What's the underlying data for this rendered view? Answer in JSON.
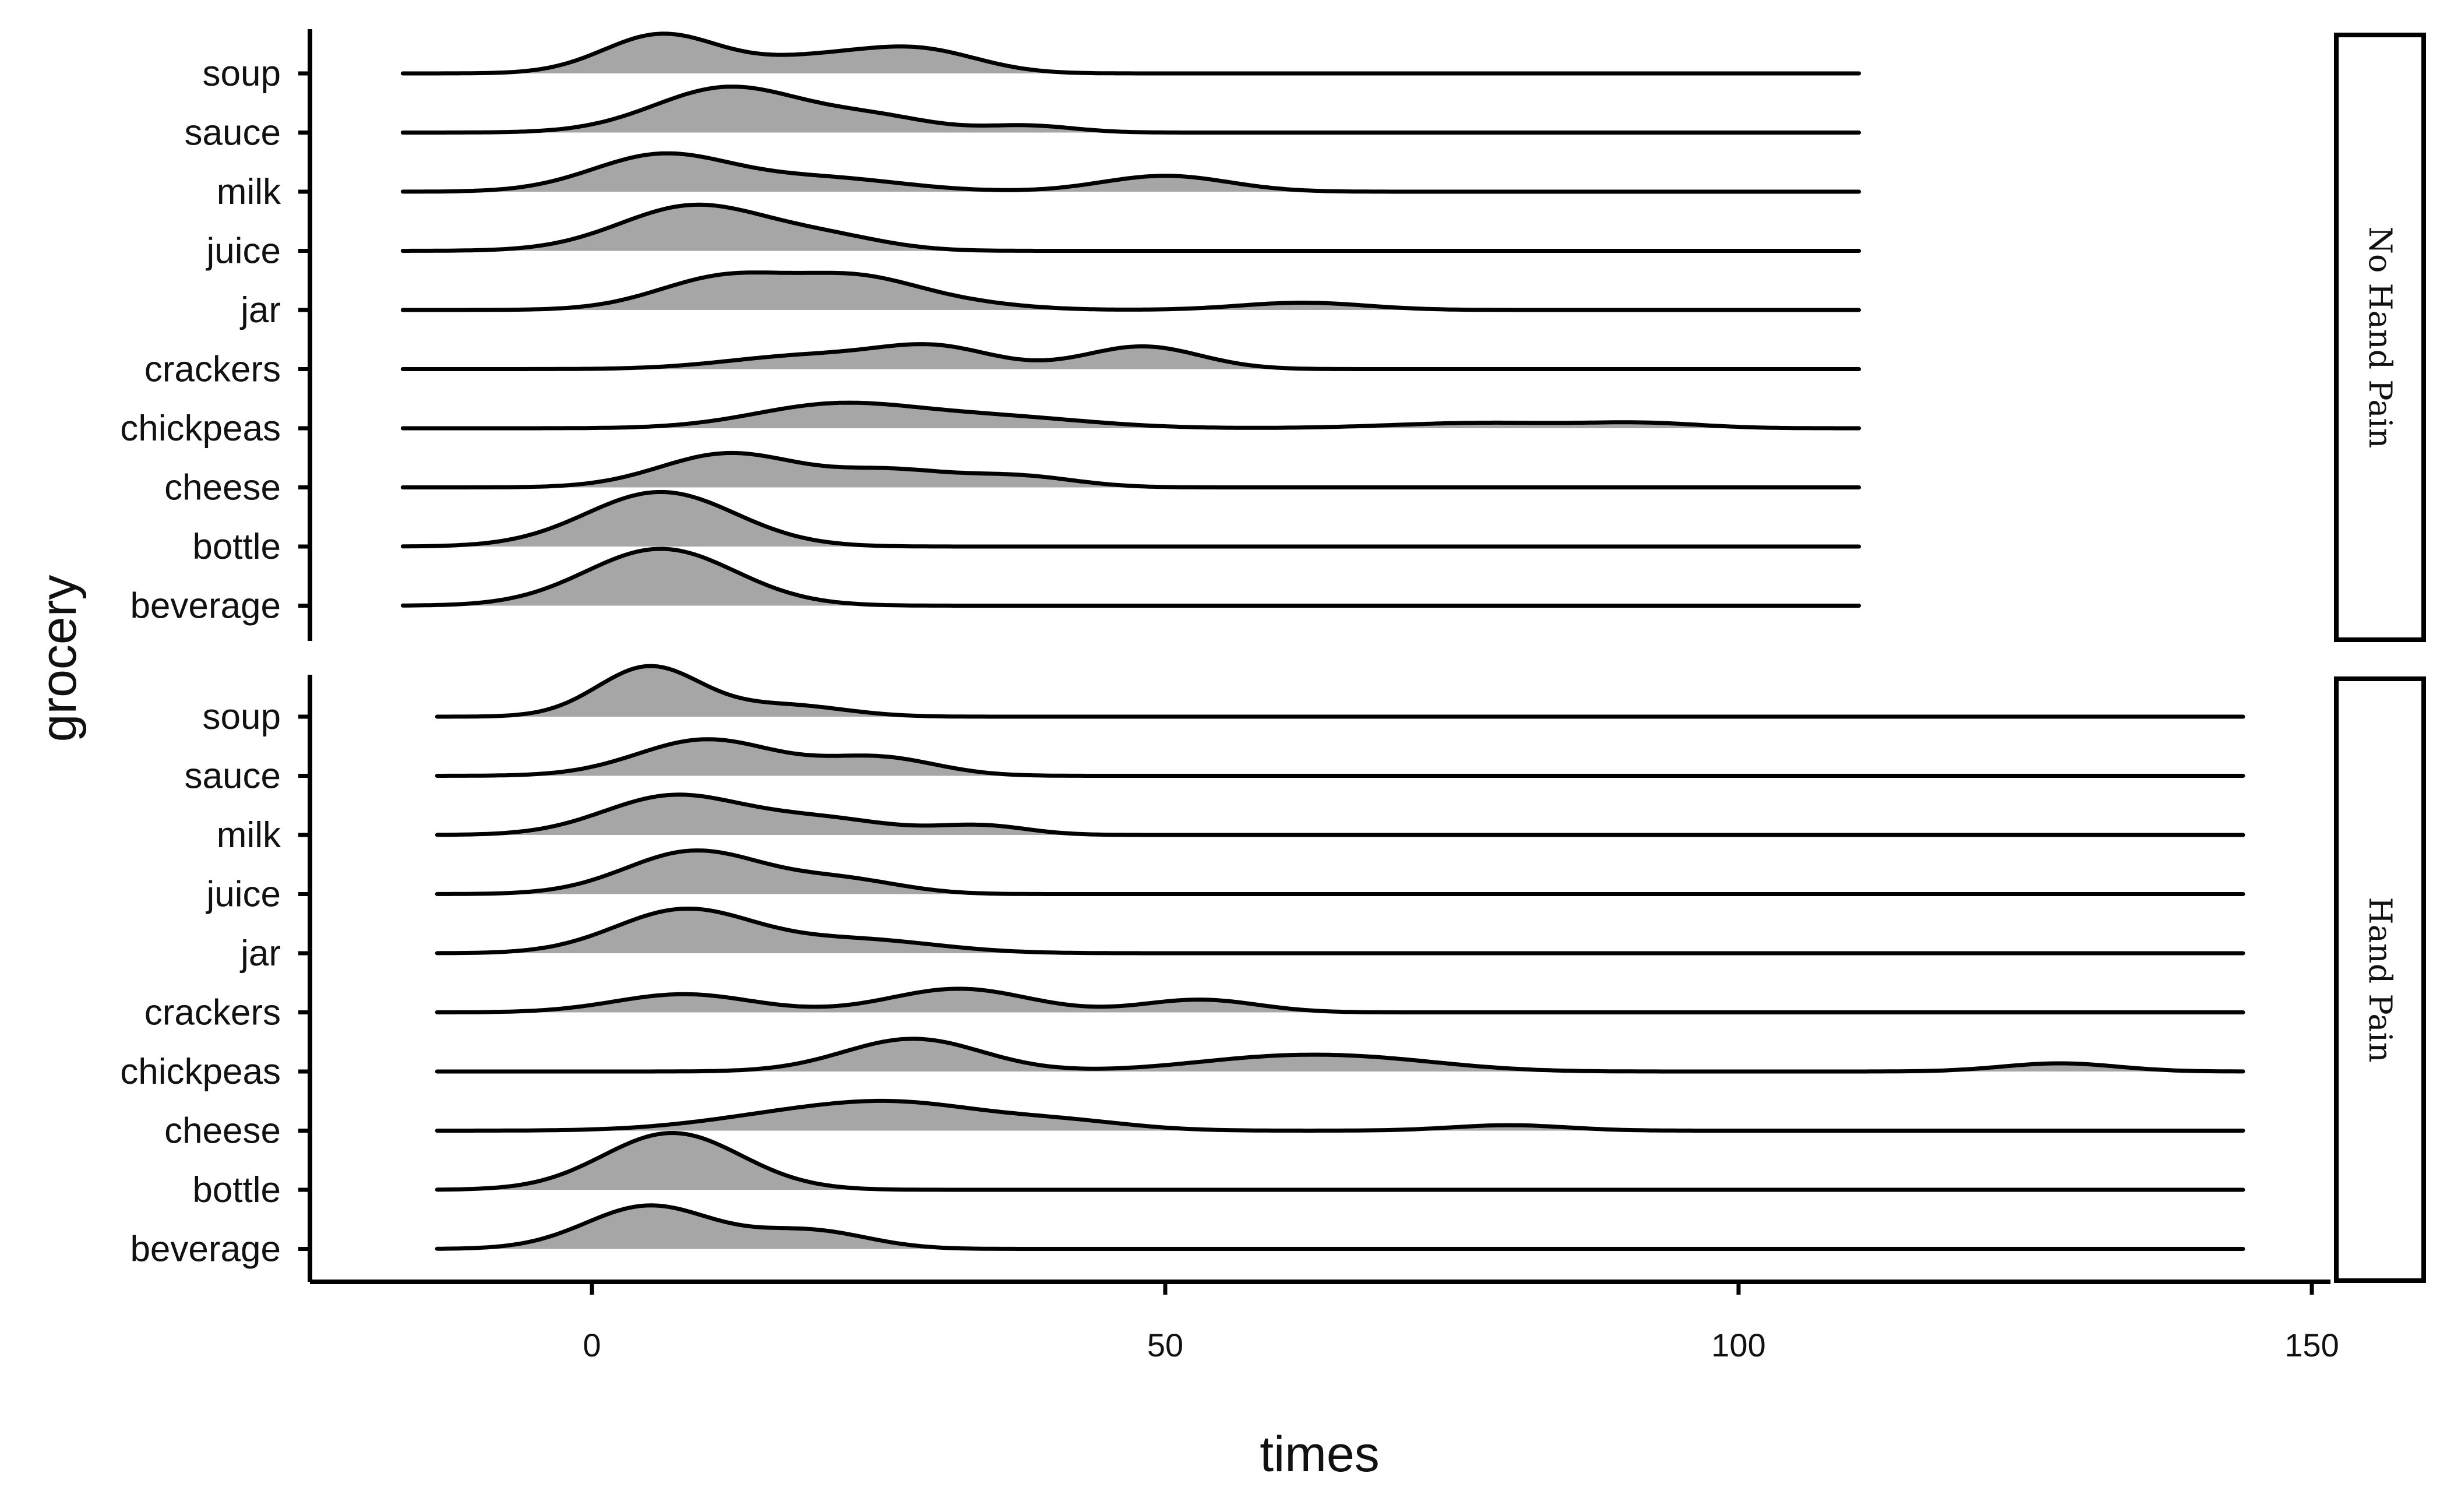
{
  "chart_data": {
    "type": "ridgeline",
    "xlabel": "times",
    "ylabel": "grocery",
    "xlim": [
      -24,
      150
    ],
    "x_ticks": [
      0,
      50,
      100,
      150
    ],
    "fill_color": "#a6a6a6",
    "line_color": "#000000",
    "categories": [
      "soup",
      "sauce",
      "milk",
      "juice",
      "jar",
      "crackers",
      "chickpeas",
      "cheese",
      "bottle",
      "beverage"
    ],
    "panels": [
      {
        "strip_label": "No Hand Pain",
        "x_range": [
          -16.5,
          110.5
        ],
        "series": [
          {
            "name": "soup",
            "peaks": [
              [
                6,
                0.85,
                5
              ],
              [
                20,
                0.35,
                6
              ],
              [
                29,
                0.45,
                5
              ]
            ]
          },
          {
            "name": "sauce",
            "peaks": [
              [
                12,
                1.0,
                6.5
              ],
              [
                25,
                0.3,
                5
              ],
              [
                38,
                0.15,
                4
              ]
            ]
          },
          {
            "name": "milk",
            "peaks": [
              [
                6,
                0.8,
                6
              ],
              [
                20,
                0.3,
                7
              ],
              [
                50,
                0.35,
                5.5
              ]
            ]
          },
          {
            "name": "juice",
            "peaks": [
              [
                9,
                1.0,
                6.5
              ],
              [
                21,
                0.25,
                5
              ]
            ]
          },
          {
            "name": "jar",
            "peaks": [
              [
                12,
                0.75,
                6
              ],
              [
                23,
                0.55,
                5
              ],
              [
                30,
                0.2,
                6
              ],
              [
                62,
                0.16,
                5.5
              ]
            ]
          },
          {
            "name": "crackers",
            "peaks": [
              [
                19,
                0.3,
                7
              ],
              [
                30,
                0.45,
                5
              ],
              [
                48,
                0.5,
                5
              ]
            ]
          },
          {
            "name": "chickpeas",
            "peaks": [
              [
                21,
                0.5,
                7
              ],
              [
                35,
                0.25,
                8
              ],
              [
                78,
                0.12,
                8
              ],
              [
                92,
                0.1,
                5
              ]
            ]
          },
          {
            "name": "cheese",
            "peaks": [
              [
                12,
                0.75,
                6
              ],
              [
                26,
                0.35,
                5
              ],
              [
                37,
                0.25,
                5
              ]
            ]
          },
          {
            "name": "bottle",
            "peaks": [
              [
                6,
                1.2,
                6.5
              ]
            ]
          },
          {
            "name": "beverage",
            "peaks": [
              [
                6,
                1.25,
                6.5
              ]
            ]
          }
        ]
      },
      {
        "strip_label": "Hand Pain",
        "x_range": [
          -13.5,
          144
        ],
        "series": [
          {
            "name": "soup",
            "peaks": [
              [
                5,
                1.1,
                4.5
              ],
              [
                17,
                0.25,
                5
              ]
            ]
          },
          {
            "name": "sauce",
            "peaks": [
              [
                10,
                0.8,
                6
              ],
              [
                25,
                0.4,
                5
              ]
            ]
          },
          {
            "name": "milk",
            "peaks": [
              [
                7,
                0.85,
                6
              ],
              [
                20,
                0.35,
                6
              ],
              [
                34,
                0.2,
                4
              ]
            ]
          },
          {
            "name": "juice",
            "peaks": [
              [
                9,
                0.95,
                6
              ],
              [
                22,
                0.3,
                5
              ]
            ]
          },
          {
            "name": "jar",
            "peaks": [
              [
                8,
                0.95,
                6
              ],
              [
                23,
                0.3,
                7
              ]
            ]
          },
          {
            "name": "crackers",
            "peaks": [
              [
                8,
                0.4,
                6
              ],
              [
                32,
                0.52,
                6
              ],
              [
                53,
                0.28,
                5
              ]
            ]
          },
          {
            "name": "chickpeas",
            "peaks": [
              [
                28,
                0.72,
                6
              ],
              [
                60,
                0.3,
                8
              ],
              [
                70,
                0.15,
                7
              ],
              [
                128,
                0.18,
                5
              ]
            ]
          },
          {
            "name": "cheese",
            "peaks": [
              [
                18,
                0.35,
                8
              ],
              [
                28,
                0.45,
                7
              ],
              [
                41,
                0.2,
                6
              ],
              [
                80,
                0.12,
                5
              ]
            ]
          },
          {
            "name": "bottle",
            "peaks": [
              [
                7,
                1.25,
                6
              ]
            ]
          },
          {
            "name": "beverage",
            "peaks": [
              [
                5,
                0.95,
                5.5
              ],
              [
                19,
                0.4,
                5
              ]
            ]
          }
        ]
      }
    ]
  }
}
